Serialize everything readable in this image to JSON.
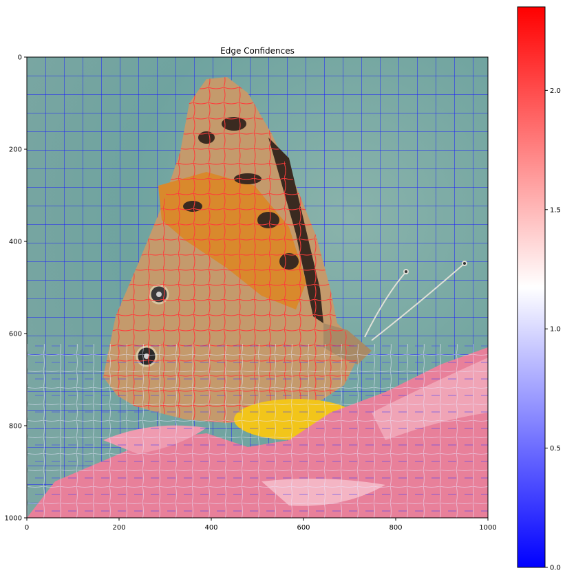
{
  "chart_data": [
    {
      "type": "image-overlay",
      "title": "Edge Confidences",
      "xlabel": "",
      "ylabel": "",
      "xlim": [
        0,
        1000
      ],
      "ylim": [
        1000,
        0
      ],
      "xticks": [
        0,
        200,
        400,
        600,
        800,
        1000
      ],
      "yticks": [
        0,
        200,
        400,
        600,
        800,
        1000
      ],
      "image_description_elements": {
        "background": "teal-grey blurred background",
        "subject": "butterfly on pink flower",
        "overlay": "superpixel boundary edges colored by confidence"
      }
    },
    {
      "type": "colorbar",
      "colormap": "bwr",
      "range": [
        0.0,
        2.35
      ],
      "ticks": [
        0.0,
        0.5,
        1.0,
        1.5,
        2.0
      ],
      "tick_labels": [
        "0.0",
        "0.5",
        "1.0",
        "1.5",
        "2.0"
      ]
    }
  ],
  "colors": {
    "low": "#0000ff",
    "mid": "#ffffff",
    "high": "#ff0000",
    "background": "#6fa39f",
    "flower": "#e8809a",
    "wing_orange": "#d9892c",
    "wing_dark": "#3a2a20",
    "pollen": "#f2c51a"
  }
}
